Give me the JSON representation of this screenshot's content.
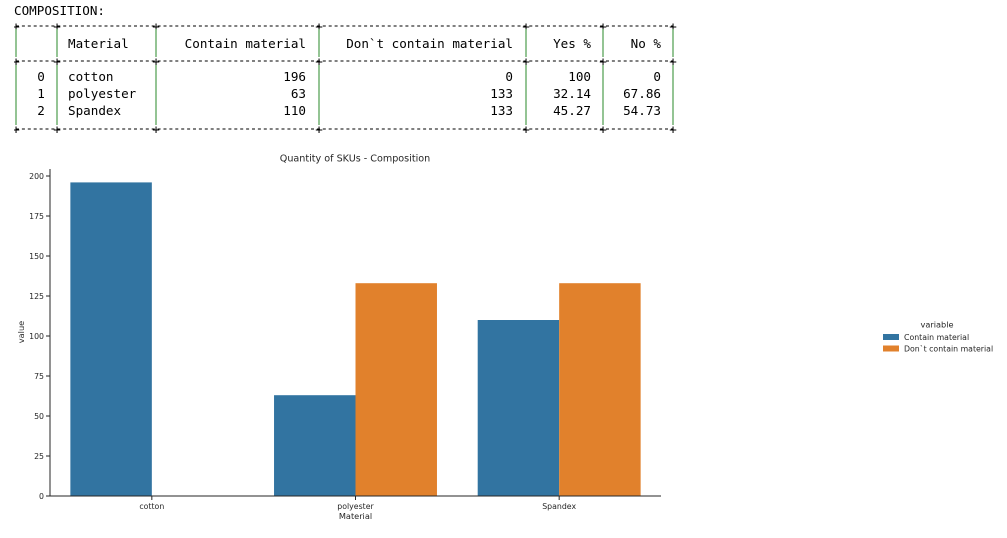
{
  "heading": "COMPOSITION:",
  "table": {
    "headers": [
      "",
      "Material",
      "Contain material",
      "Don`t contain material",
      "Yes %",
      "No %"
    ],
    "rows": [
      [
        "0",
        "cotton",
        "196",
        "0",
        "100",
        "0"
      ],
      [
        "1",
        "polyester",
        "63",
        "133",
        "32.14",
        "67.86"
      ],
      [
        "2",
        "Spandex",
        "110",
        "133",
        "45.27",
        "54.73"
      ]
    ]
  },
  "chart_data": {
    "type": "bar",
    "title": "Quantity of SKUs - Composition",
    "xlabel": "Material",
    "ylabel": "value",
    "categories": [
      "cotton",
      "polyester",
      "Spandex"
    ],
    "series": [
      {
        "name": "Contain material",
        "values": [
          196,
          63,
          110
        ],
        "color": "#3274a1"
      },
      {
        "name": "Don`t contain material",
        "values": [
          0,
          133,
          133
        ],
        "color": "#e1812c"
      }
    ],
    "ylim": [
      0,
      205
    ],
    "yticks": [
      0,
      25,
      50,
      75,
      100,
      125,
      150,
      175,
      200
    ],
    "legend": {
      "title": "variable",
      "placement": "right"
    },
    "grid": false
  }
}
